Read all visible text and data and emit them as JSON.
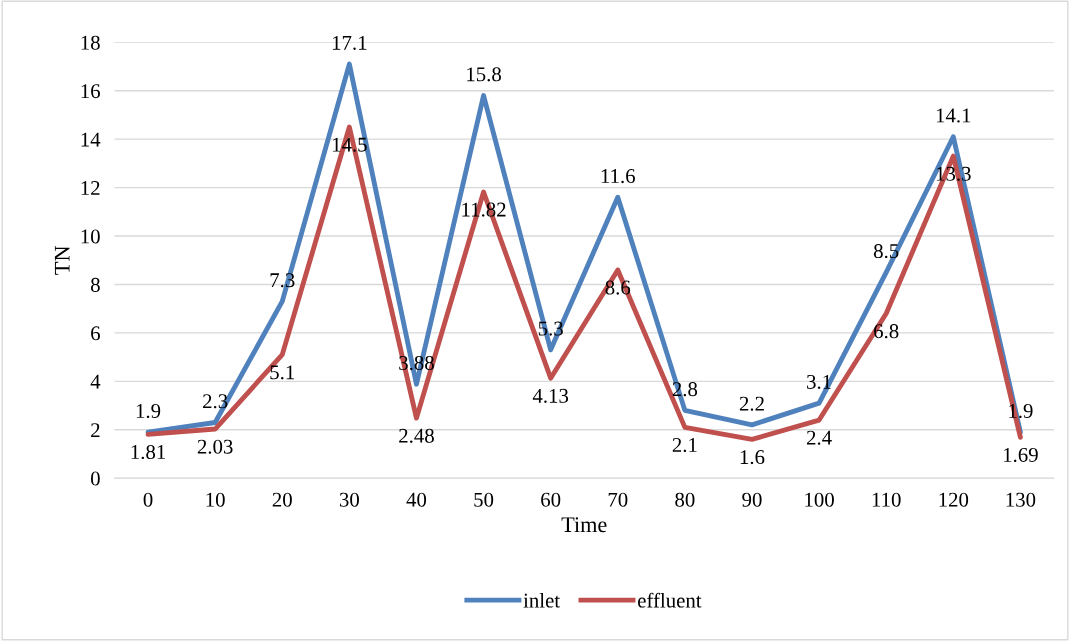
{
  "chart_data": {
    "type": "line",
    "xlabel": "Time",
    "ylabel": "TN",
    "categories": [
      "0",
      "10",
      "20",
      "30",
      "40",
      "50",
      "60",
      "70",
      "80",
      "90",
      "100",
      "110",
      "120",
      "130"
    ],
    "series": [
      {
        "name": "inlet",
        "color": "#4f81bd",
        "values": [
          1.9,
          2.3,
          7.3,
          17.1,
          3.88,
          15.8,
          5.3,
          11.6,
          2.8,
          2.2,
          3.1,
          8.5,
          14.1,
          1.9
        ]
      },
      {
        "name": "effluent",
        "color": "#c0504d",
        "values": [
          1.81,
          2.03,
          5.1,
          14.5,
          2.48,
          11.82,
          4.13,
          8.6,
          2.1,
          1.6,
          2.4,
          6.8,
          13.3,
          1.69
        ]
      }
    ],
    "ylim": [
      0,
      18
    ],
    "yticks": [
      0,
      2,
      4,
      6,
      8,
      10,
      12,
      14,
      16,
      18
    ],
    "grid": "y",
    "legend": "bottom",
    "marker": "none",
    "line_style": "solid",
    "data_labels": true
  }
}
